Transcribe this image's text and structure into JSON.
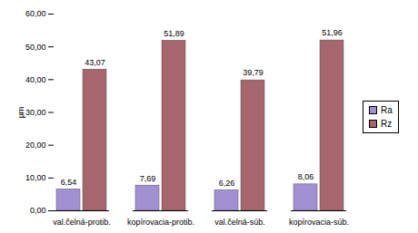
{
  "chart_data": {
    "type": "bar",
    "categories": [
      "val.čelná-protib.",
      "kopírovacia-protib.",
      "val.čelná-súb.",
      "kopírovacia-súb."
    ],
    "series": [
      {
        "name": "Ra",
        "color": "#a190d2",
        "values": [
          6.54,
          7.69,
          6.26,
          8.06
        ],
        "value_labels": [
          "6,54",
          "7,69",
          "6,26",
          "8,06"
        ]
      },
      {
        "name": "Rz",
        "color": "#a5666e",
        "values": [
          43.07,
          51.89,
          39.79,
          51.96
        ],
        "value_labels": [
          "43,07",
          "51,89",
          "39,79",
          "51,96"
        ]
      }
    ],
    "ylabel": "µm",
    "ylim": [
      0,
      60
    ],
    "yticks": [
      {
        "value": 0,
        "label": "0,00"
      },
      {
        "value": 10,
        "label": "10,00"
      },
      {
        "value": 20,
        "label": "20,00"
      },
      {
        "value": 30,
        "label": "30,00"
      },
      {
        "value": 40,
        "label": "40,00"
      },
      {
        "value": 50,
        "label": "50,00"
      },
      {
        "value": 60,
        "label": "60,00"
      }
    ],
    "grid": false,
    "legend": "right",
    "data_labels": true
  }
}
